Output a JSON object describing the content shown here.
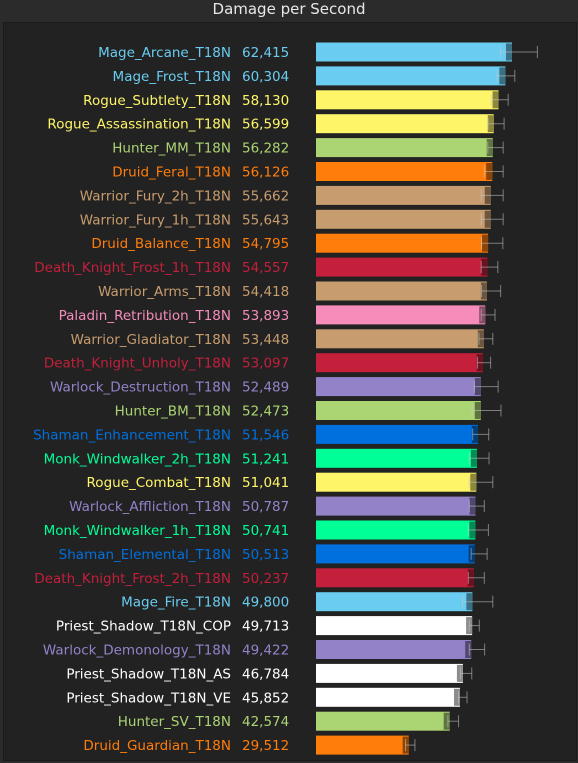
{
  "chart_data": {
    "type": "bar",
    "orientation": "horizontal",
    "title": "Damage per Second",
    "error_bars": true,
    "legend": "none",
    "grid": false,
    "colors": {
      "background": "#222222",
      "mage": "#69ccf0",
      "rogue": "#fff569",
      "hunter": "#abd473",
      "druid": "#ff7d0a",
      "warrior": "#c79c6e",
      "death_knight": "#c41f3b",
      "paladin": "#f58cba",
      "warlock": "#9482c9",
      "shaman": "#0070de",
      "monk": "#00ff96",
      "priest": "#ffffff"
    },
    "bars": [
      {
        "label": "Mage_Arcane_T18N",
        "value": 62415,
        "value_label": "62,415",
        "color": "#69ccf0",
        "err_low": 58800,
        "err_high": 70500
      },
      {
        "label": "Mage_Frost_T18N",
        "value": 60304,
        "value_label": "60,304",
        "color": "#69ccf0",
        "err_low": 57600,
        "err_high": 63300
      },
      {
        "label": "Rogue_Subtlety_T18N",
        "value": 58130,
        "value_label": "58,130",
        "color": "#fff569",
        "err_low": 55800,
        "err_high": 61200
      },
      {
        "label": "Rogue_Assassination_T18N",
        "value": 56599,
        "value_label": "56,599",
        "color": "#fff569",
        "err_low": 54800,
        "err_high": 59900
      },
      {
        "label": "Hunter_MM_T18N",
        "value": 56282,
        "value_label": "56,282",
        "color": "#abd473",
        "err_low": 54700,
        "err_high": 59600
      },
      {
        "label": "Druid_Feral_T18N",
        "value": 56126,
        "value_label": "56,126",
        "color": "#ff7d0a",
        "err_low": 53600,
        "err_high": 59600
      },
      {
        "label": "Warrior_Fury_2h_T18N",
        "value": 55662,
        "value_label": "55,662",
        "color": "#c79c6e",
        "err_low": 52600,
        "err_high": 59600
      },
      {
        "label": "Warrior_Fury_1h_T18N",
        "value": 55643,
        "value_label": "55,643",
        "color": "#c79c6e",
        "err_low": 52600,
        "err_high": 59600
      },
      {
        "label": "Druid_Balance_T18N",
        "value": 54795,
        "value_label": "54,795",
        "color": "#ff7d0a",
        "err_low": 52700,
        "err_high": 59500
      },
      {
        "label": "Death_Knight_Frost_1h_T18N",
        "value": 54557,
        "value_label": "54,557",
        "color": "#c41f3b",
        "err_low": 52600,
        "err_high": 57900
      },
      {
        "label": "Warrior_Arms_T18N",
        "value": 54418,
        "value_label": "54,418",
        "color": "#c79c6e",
        "err_low": 52700,
        "err_high": 58800
      },
      {
        "label": "Paladin_Retribution_T18N",
        "value": 53893,
        "value_label": "53,893",
        "color": "#f58cba",
        "err_low": 52600,
        "err_high": 57000
      },
      {
        "label": "Warrior_Gladiator_T18N",
        "value": 53448,
        "value_label": "53,448",
        "color": "#c79c6e",
        "err_low": 51900,
        "err_high": 56300
      },
      {
        "label": "Death_Knight_Unholy_T18N",
        "value": 53097,
        "value_label": "53,097",
        "color": "#c41f3b",
        "err_low": 51400,
        "err_high": 55600
      },
      {
        "label": "Warlock_Destruction_T18N",
        "value": 52489,
        "value_label": "52,489",
        "color": "#9482c9",
        "err_low": 50400,
        "err_high": 58000
      },
      {
        "label": "Hunter_BM_T18N",
        "value": 52473,
        "value_label": "52,473",
        "color": "#abd473",
        "err_low": 49700,
        "err_high": 58900
      },
      {
        "label": "Shaman_Enhancement_T18N",
        "value": 51546,
        "value_label": "51,546",
        "color": "#0070de",
        "err_low": 49900,
        "err_high": 55000
      },
      {
        "label": "Monk_Windwalker_2h_T18N",
        "value": 51241,
        "value_label": "51,241",
        "color": "#00ff96",
        "err_low": 48800,
        "err_high": 55100
      },
      {
        "label": "Rogue_Combat_T18N",
        "value": 51041,
        "value_label": "51,041",
        "color": "#fff569",
        "err_low": 48800,
        "err_high": 56300
      },
      {
        "label": "Warlock_Affliction_T18N",
        "value": 50787,
        "value_label": "50,787",
        "color": "#9482c9",
        "err_low": 48800,
        "err_high": 53600
      },
      {
        "label": "Monk_Windwalker_1h_T18N",
        "value": 50741,
        "value_label": "50,741",
        "color": "#00ff96",
        "err_low": 48500,
        "err_high": 54900
      },
      {
        "label": "Shaman_Elemental_T18N",
        "value": 50513,
        "value_label": "50,513",
        "color": "#0070de",
        "err_low": 49400,
        "err_high": 54500
      },
      {
        "label": "Death_Knight_Frost_2h_T18N",
        "value": 50237,
        "value_label": "50,237",
        "color": "#c41f3b",
        "err_low": 48500,
        "err_high": 53600
      },
      {
        "label": "Mage_Fire_T18N",
        "value": 49800,
        "value_label": "49,800",
        "color": "#69ccf0",
        "err_low": 46700,
        "err_high": 56300
      },
      {
        "label": "Priest_Shadow_T18N_COP",
        "value": 49713,
        "value_label": "49,713",
        "color": "#ffffff",
        "err_low": 48800,
        "err_high": 52000
      },
      {
        "label": "Warlock_Demonology_T18N",
        "value": 49422,
        "value_label": "49,422",
        "color": "#9482c9",
        "err_low": 48800,
        "err_high": 53700
      },
      {
        "label": "Priest_Shadow_T18N_AS",
        "value": 46784,
        "value_label": "46,784",
        "color": "#ffffff",
        "err_low": 46000,
        "err_high": 49600
      },
      {
        "label": "Priest_Shadow_T18N_VE",
        "value": 45852,
        "value_label": "45,852",
        "color": "#ffffff",
        "err_low": 45400,
        "err_high": 48100
      },
      {
        "label": "Hunter_SV_T18N",
        "value": 42574,
        "value_label": "42,574",
        "color": "#abd473",
        "err_low": 42000,
        "err_high": 45400
      },
      {
        "label": "Druid_Guardian_T18N",
        "value": 29512,
        "value_label": "29,512",
        "color": "#ff7d0a",
        "err_low": 28500,
        "err_high": 31500
      }
    ]
  }
}
